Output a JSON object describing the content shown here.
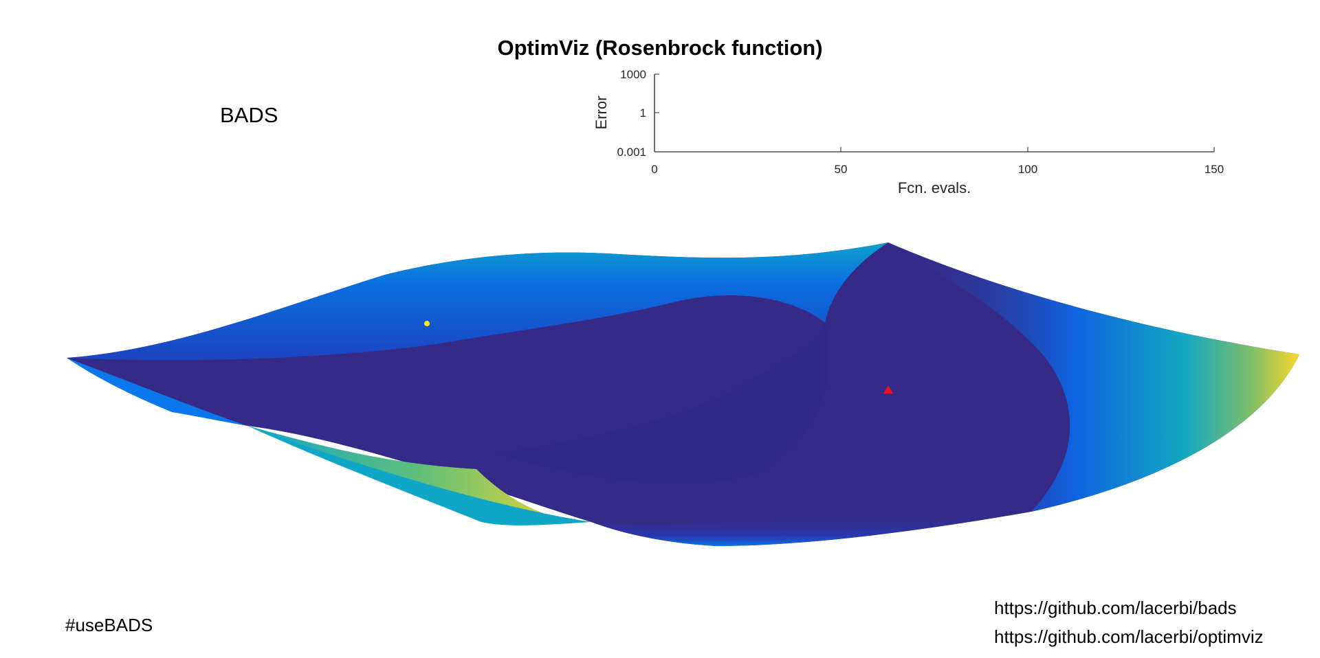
{
  "title": "OptimViz (Rosenbrock function)",
  "method_label": "BADS",
  "hashtag": "#useBADS",
  "links": [
    "https://github.com/lacerbi/bads",
    "https://github.com/lacerbi/optimviz"
  ],
  "colors": {
    "surface_low": "#352a87",
    "surface_mid": "#0f6fe0",
    "surface_teal": "#0fa6c8",
    "surface_high": "#f9d327",
    "current_point": "#f5e81c",
    "minimum_marker": "#e8121b",
    "axis": "#262626"
  },
  "chart_data": [
    {
      "type": "line",
      "title": "",
      "xlabel": "Fcn. evals.",
      "ylabel": "Error",
      "xlim": [
        0,
        150
      ],
      "ylim": [
        0.001,
        1000
      ],
      "yscale": "log",
      "x_ticks": [
        "0",
        "50",
        "100",
        "150"
      ],
      "y_ticks": [
        "1000",
        "1",
        "0.001"
      ],
      "series": [],
      "grid": false
    },
    {
      "type": "surface",
      "title": "",
      "description_points": [
        {
          "name": "current-point",
          "marker": "circle",
          "color": "#f5e81c"
        },
        {
          "name": "minimum",
          "marker": "triangle",
          "color": "#e8121b"
        }
      ]
    }
  ]
}
